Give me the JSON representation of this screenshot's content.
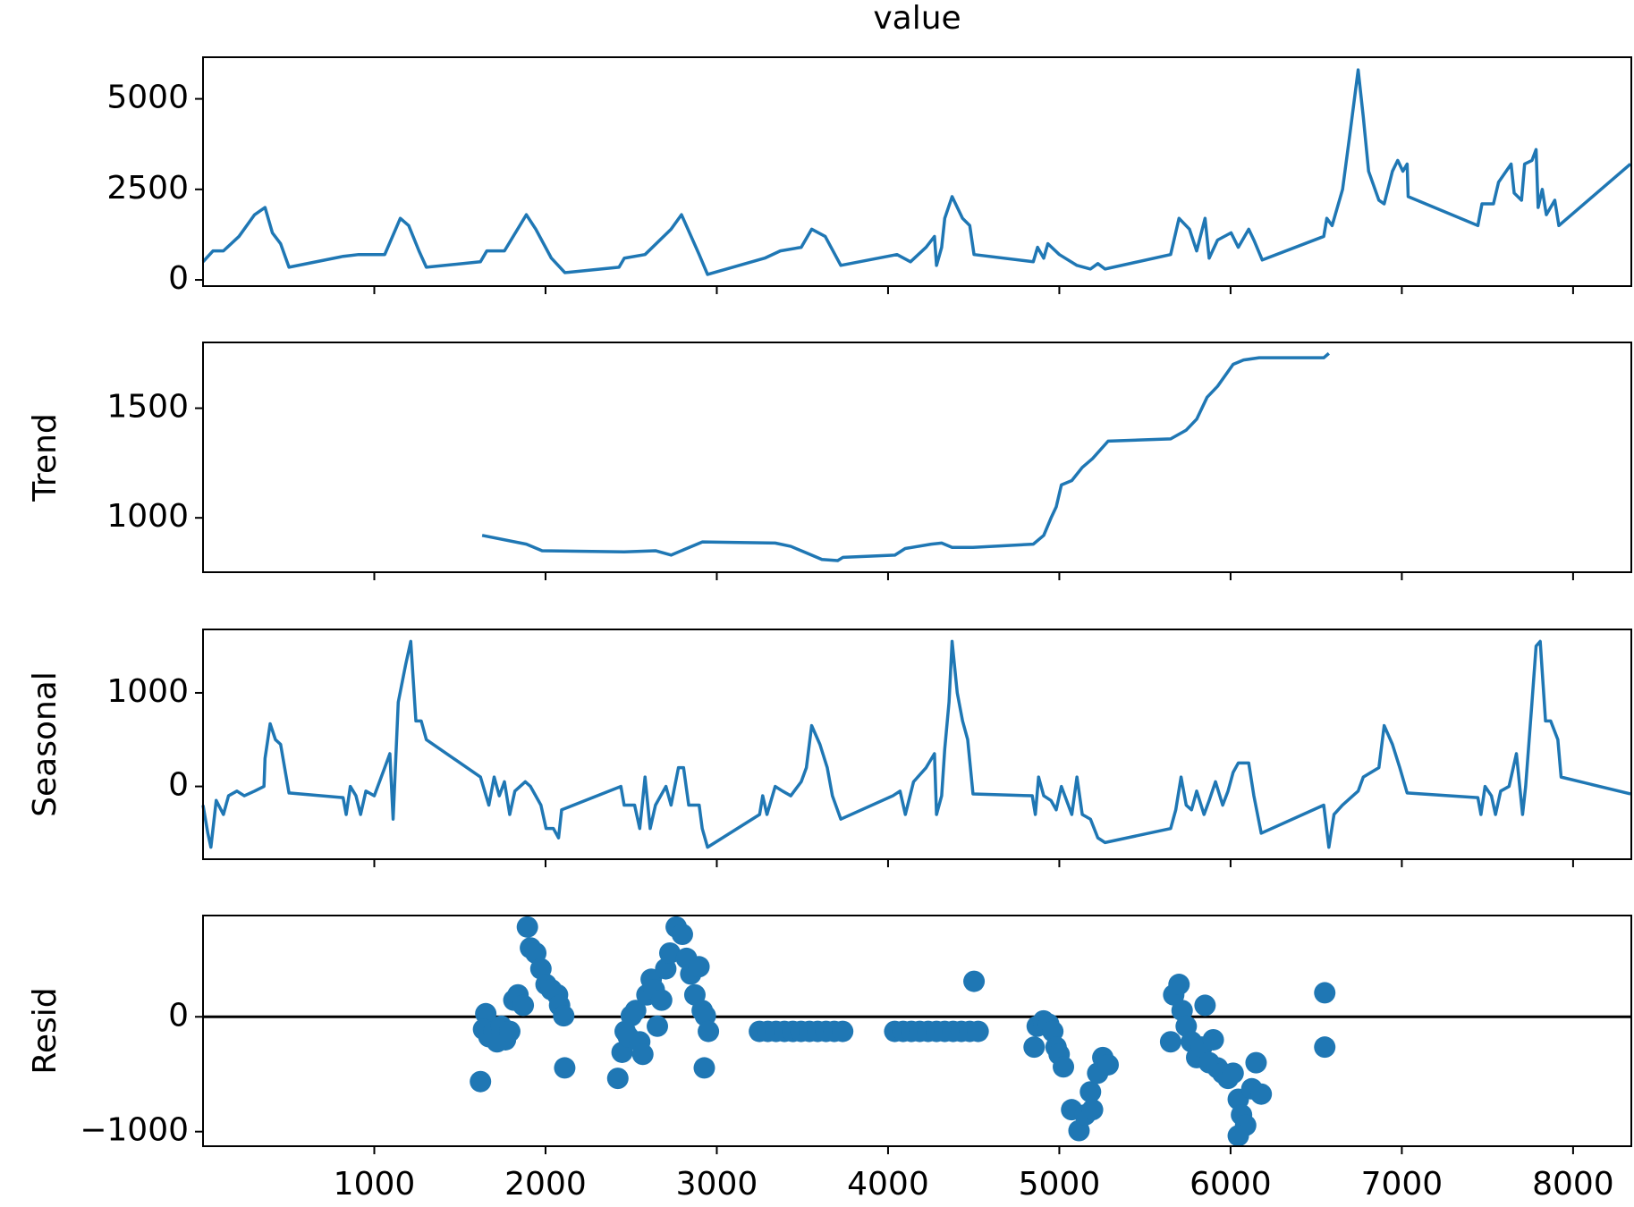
{
  "chart_data": [
    {
      "type": "line",
      "title": "value",
      "color": "#1f77b4",
      "x": [
        0,
        58,
        119,
        210,
        301,
        362,
        405,
        453,
        502,
        818,
        909,
        1061,
        1152,
        1201,
        1261,
        1304,
        1620,
        1657,
        1760,
        1888,
        1943,
        2034,
        2113,
        2429,
        2460,
        2581,
        2733,
        2794,
        2897,
        2946,
        3280,
        3371,
        3493,
        3554,
        3633,
        3724,
        4052,
        4131,
        4222,
        4271,
        4283,
        4313,
        4331,
        4374,
        4435,
        4477,
        4502,
        4848,
        4873,
        4909,
        4933,
        5000,
        5103,
        5182,
        5225,
        5267,
        5650,
        5699,
        5760,
        5802,
        5851,
        5875,
        5924,
        6003,
        6045,
        6106,
        6136,
        6185,
        6544,
        6562,
        6593,
        6654,
        6696,
        6745,
        6775,
        6806,
        6866,
        6897,
        6945,
        6976,
        7006,
        7031,
        7037,
        7444,
        7468,
        7535,
        7565,
        7638,
        7656,
        7699,
        7717,
        7760,
        7784,
        7796,
        7820,
        7844,
        7893,
        7917,
        8335
      ],
      "values": [
        500,
        800,
        800,
        1200,
        1800,
        2000,
        1300,
        1000,
        350,
        650,
        700,
        700,
        1700,
        1500,
        800,
        350,
        500,
        800,
        800,
        1800,
        1400,
        600,
        200,
        350,
        600,
        700,
        1400,
        1800,
        700,
        150,
        600,
        800,
        900,
        1400,
        1200,
        400,
        700,
        500,
        900,
        1200,
        400,
        900,
        1700,
        2300,
        1700,
        1500,
        700,
        500,
        900,
        600,
        1000,
        700,
        400,
        300,
        450,
        300,
        700,
        1700,
        1400,
        800,
        1700,
        600,
        1100,
        1300,
        900,
        1400,
        1100,
        550,
        1200,
        1700,
        1500,
        2500,
        4000,
        5800,
        4500,
        3000,
        2200,
        2100,
        3000,
        3300,
        3000,
        3200,
        2300,
        1500,
        2100,
        2100,
        2700,
        3200,
        2400,
        2200,
        3200,
        3300,
        3600,
        2000,
        2500,
        1800,
        2200,
        1500,
        3200
      ],
      "xlim": [
        0,
        8340
      ],
      "ylim": [
        -172,
        6150
      ],
      "yticks": [
        0,
        2500,
        5000
      ]
    },
    {
      "type": "line",
      "ylabel": "Trend",
      "color": "#1f77b4",
      "x": [
        1630,
        1888,
        1980,
        2460,
        2642,
        2733,
        2824,
        2916,
        3341,
        3432,
        3523,
        3614,
        3706,
        3737,
        4040,
        4100,
        4252,
        4313,
        4374,
        4496,
        4848,
        4909,
        4952,
        4982,
        5012,
        5073,
        5134,
        5194,
        5285,
        5650,
        5741,
        5802,
        5863,
        5924,
        6015,
        6076,
        6167,
        6544,
        6574
      ],
      "values": [
        920,
        880,
        850,
        845,
        850,
        830,
        860,
        890,
        885,
        870,
        840,
        810,
        805,
        820,
        830,
        860,
        880,
        885,
        865,
        865,
        880,
        920,
        1000,
        1050,
        1150,
        1170,
        1230,
        1270,
        1350,
        1360,
        1400,
        1450,
        1550,
        1600,
        1700,
        1720,
        1730,
        1730,
        1750
      ],
      "xlim": [
        0,
        8340
      ],
      "ylim": [
        752,
        1800
      ],
      "yticks": [
        1000,
        1500
      ]
    },
    {
      "type": "line",
      "ylabel": "Seasonal",
      "color": "#1f77b4",
      "x": [
        0,
        28,
        46,
        77,
        119,
        149,
        198,
        241,
        301,
        356,
        362,
        392,
        423,
        453,
        502,
        818,
        836,
        860,
        893,
        920,
        951,
        1000,
        1061,
        1091,
        1110,
        1140,
        1183,
        1213,
        1243,
        1274,
        1304,
        1620,
        1669,
        1700,
        1730,
        1760,
        1791,
        1821,
        1882,
        1912,
        1973,
        2003,
        2046,
        2076,
        2094,
        2440,
        2459,
        2520,
        2550,
        2581,
        2611,
        2642,
        2703,
        2733,
        2776,
        2806,
        2836,
        2897,
        2915,
        2946,
        3250,
        3268,
        3293,
        3341,
        3384,
        3432,
        3493,
        3523,
        3554,
        3602,
        3645,
        3675,
        3724,
        4028,
        4070,
        4101,
        4149,
        4222,
        4271,
        4283,
        4313,
        4331,
        4356,
        4374,
        4404,
        4435,
        4465,
        4496,
        4842,
        4860,
        4879,
        4909,
        4951,
        4982,
        5012,
        5073,
        5103,
        5134,
        5182,
        5225,
        5267,
        5650,
        5680,
        5711,
        5741,
        5772,
        5802,
        5845,
        5875,
        5912,
        5954,
        5985,
        6015,
        6045,
        6106,
        6136,
        6179,
        6544,
        6574,
        6604,
        6653,
        6714,
        6745,
        6775,
        6866,
        6897,
        6945,
        6988,
        7031,
        7444,
        7462,
        7486,
        7523,
        7547,
        7577,
        7626,
        7669,
        7705,
        7723,
        7760,
        7784,
        7808,
        7839,
        7869,
        7911,
        7930,
        8335
      ],
      "values": [
        -200,
        -500,
        -650,
        -150,
        -300,
        -100,
        -50,
        -100,
        -50,
        0,
        300,
        670,
        500,
        450,
        -70,
        -120,
        -300,
        0,
        -100,
        -300,
        -50,
        -100,
        200,
        350,
        -350,
        900,
        1300,
        1550,
        700,
        700,
        500,
        100,
        -200,
        100,
        -100,
        50,
        -300,
        -50,
        50,
        0,
        -200,
        -450,
        -450,
        -550,
        -250,
        0,
        -200,
        -200,
        -450,
        100,
        -450,
        -200,
        0,
        -200,
        200,
        200,
        -200,
        -200,
        -450,
        -650,
        -300,
        -100,
        -300,
        0,
        -50,
        -100,
        50,
        200,
        650,
        450,
        200,
        -100,
        -350,
        -100,
        -50,
        -300,
        50,
        200,
        350,
        -300,
        -100,
        400,
        900,
        1550,
        1000,
        700,
        500,
        -80,
        -100,
        -300,
        100,
        -100,
        -150,
        -250,
        0,
        -300,
        100,
        -300,
        -350,
        -550,
        -600,
        -450,
        -250,
        100,
        -200,
        -250,
        -50,
        -300,
        -150,
        50,
        -200,
        -50,
        150,
        250,
        250,
        -100,
        -500,
        -200,
        -650,
        -300,
        -200,
        -100,
        -50,
        100,
        200,
        650,
        450,
        200,
        -70,
        -120,
        -300,
        0,
        -100,
        -300,
        -50,
        0,
        350,
        -300,
        0,
        900,
        1500,
        1550,
        700,
        700,
        500,
        100,
        -80
      ],
      "xlim": [
        0,
        8340
      ],
      "ylim": [
        -778,
        1678
      ],
      "yticks": [
        0,
        1000
      ]
    },
    {
      "type": "scatter",
      "ylabel": "Resid",
      "color": "#1f77b4",
      "hline": 0,
      "x": [
        1620,
        1651,
        1638,
        1669,
        1700,
        1717,
        1742,
        1766,
        1791,
        1815,
        1839,
        1870,
        1894,
        1912,
        1943,
        1973,
        2003,
        2034,
        2070,
        2082,
        2106,
        2112,
        2422,
        2447,
        2465,
        2483,
        2501,
        2526,
        2550,
        2568,
        2592,
        2617,
        2635,
        2653,
        2678,
        2702,
        2726,
        2763,
        2799,
        2823,
        2848,
        2872,
        2896,
        2915,
        2933,
        2951,
        2927,
        3249,
        3298,
        3346,
        3395,
        3443,
        3492,
        3541,
        3589,
        3638,
        3686,
        3735,
        4039,
        4088,
        4137,
        4185,
        4234,
        4283,
        4331,
        4380,
        4428,
        4477,
        4526,
        4502,
        4853,
        4871,
        4908,
        4938,
        4962,
        4981,
        4999,
        5024,
        5072,
        5115,
        5151,
        5182,
        5194,
        5224,
        5254,
        5285,
        5650,
        5668,
        5699,
        5717,
        5741,
        5772,
        5802,
        5832,
        5851,
        5875,
        5899,
        5924,
        5954,
        5985,
        6015,
        6045,
        6064,
        6088,
        6045,
        6124,
        6149,
        6179,
        6550,
        6550
      ],
      "values": [
        -564,
        27,
        -109,
        -173,
        -127,
        -218,
        -82,
        -200,
        -127,
        145,
        191,
        100,
        782,
        600,
        555,
        418,
        282,
        236,
        191,
        100,
        9,
        -445,
        -536,
        -309,
        -127,
        -173,
        9,
        55,
        -218,
        -327,
        191,
        327,
        236,
        -82,
        145,
        418,
        555,
        782,
        718,
        509,
        373,
        191,
        436,
        55,
        9,
        -127,
        -445,
        -127,
        -127,
        -127,
        -127,
        -127,
        -127,
        -127,
        -127,
        -127,
        -127,
        -127,
        -127,
        -127,
        -127,
        -127,
        -127,
        -127,
        -127,
        -127,
        -127,
        -127,
        -127,
        309,
        -264,
        -82,
        -36,
        -64,
        -127,
        -264,
        -327,
        -436,
        -809,
        -991,
        -854,
        -654,
        -809,
        -491,
        -355,
        -418,
        -218,
        191,
        282,
        55,
        -82,
        -218,
        -355,
        -264,
        100,
        -400,
        -200,
        -445,
        -491,
        -536,
        -491,
        -718,
        -854,
        -945,
        -1036,
        -627,
        -400,
        -673,
        209,
        -264
      ],
      "xlim": [
        0,
        8340
      ],
      "ylim": [
        -1127,
        882
      ],
      "yticks": [
        {
          "value": -1000,
          "label": "−1000"
        },
        0
      ],
      "xticks": [
        1000,
        2000,
        3000,
        4000,
        5000,
        6000,
        7000,
        8000
      ]
    }
  ]
}
